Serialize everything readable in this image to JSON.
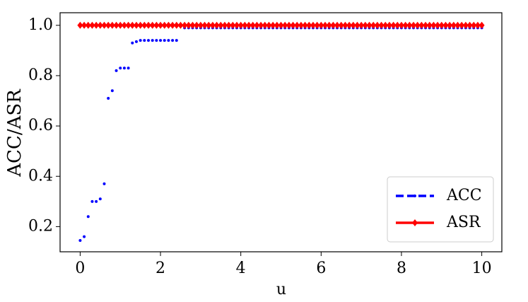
{
  "chart_data": {
    "type": "line",
    "xlabel": "u",
    "ylabel": "ACC/ASR",
    "x": [
      0,
      0.1,
      0.2,
      0.3,
      0.4,
      0.5,
      0.6,
      0.7,
      0.8,
      0.9,
      1,
      1.1,
      1.2,
      1.3,
      1.4,
      1.5,
      1.6,
      1.7,
      1.8,
      1.9,
      2,
      2.1,
      2.2,
      2.3,
      2.4,
      2.5,
      2.6,
      2.7,
      2.8,
      2.9,
      3,
      3.1,
      3.2,
      3.3,
      3.4,
      3.5,
      3.6,
      3.7,
      3.8,
      3.9,
      4,
      4.1,
      4.2,
      4.3,
      4.4,
      4.5,
      4.6,
      4.7,
      4.8,
      4.9,
      5,
      5.1,
      5.2,
      5.3,
      5.4,
      5.5,
      5.6,
      5.7,
      5.8,
      5.9,
      6,
      6.1,
      6.2,
      6.3,
      6.4,
      6.5,
      6.6,
      6.7,
      6.8,
      6.9,
      7,
      7.1,
      7.2,
      7.3,
      7.4,
      7.5,
      7.6,
      7.7,
      7.8,
      7.9,
      8,
      8.1,
      8.2,
      8.3,
      8.4,
      8.5,
      8.6,
      8.7,
      8.8,
      8.9,
      9,
      9.1,
      9.2,
      9.3,
      9.4,
      9.5,
      9.6,
      9.7,
      9.8,
      9.9,
      10
    ],
    "series": [
      {
        "name": "ACC",
        "color": "#0000ff",
        "dashed": true,
        "marker": "dot",
        "values": [
          0.145,
          0.16,
          0.24,
          0.3,
          0.3,
          0.31,
          0.37,
          0.71,
          0.74,
          0.82,
          0.83,
          0.83,
          0.83,
          0.93,
          0.935,
          0.94,
          0.94,
          0.94,
          0.94,
          0.94,
          0.94,
          0.94,
          0.94,
          0.94,
          0.94,
          1.0,
          0.99,
          0.99,
          0.99,
          0.99,
          0.99,
          0.99,
          0.99,
          0.99,
          0.99,
          0.99,
          0.99,
          0.99,
          0.99,
          0.99,
          0.99,
          0.99,
          0.99,
          0.99,
          0.99,
          0.99,
          0.99,
          0.99,
          0.99,
          0.99,
          0.99,
          0.99,
          0.99,
          0.99,
          0.99,
          0.99,
          0.99,
          0.99,
          0.99,
          0.99,
          0.99,
          0.99,
          0.99,
          0.99,
          0.99,
          0.99,
          0.99,
          0.99,
          0.99,
          0.99,
          0.99,
          0.99,
          0.99,
          0.99,
          0.99,
          0.99,
          0.99,
          0.99,
          0.99,
          0.99,
          0.99,
          0.99,
          0.99,
          0.99,
          0.99,
          0.99,
          0.99,
          0.99,
          0.99,
          0.99,
          0.99,
          0.99,
          0.99,
          0.99,
          0.99,
          0.99,
          0.99,
          0.99,
          0.99,
          0.99,
          0.99
        ]
      },
      {
        "name": "ASR",
        "color": "#ff0000",
        "dashed": false,
        "marker": "diamond",
        "values": [
          1,
          1,
          1,
          1,
          1,
          1,
          1,
          1,
          1,
          1,
          1,
          1,
          1,
          1,
          1,
          1,
          1,
          1,
          1,
          1,
          1,
          1,
          1,
          1,
          1,
          1,
          1,
          1,
          1,
          1,
          1,
          1,
          1,
          1,
          1,
          1,
          1,
          1,
          1,
          1,
          1,
          1,
          1,
          1,
          1,
          1,
          1,
          1,
          1,
          1,
          1,
          1,
          1,
          1,
          1,
          1,
          1,
          1,
          1,
          1,
          1,
          1,
          1,
          1,
          1,
          1,
          1,
          1,
          1,
          1,
          1,
          1,
          1,
          1,
          1,
          1,
          1,
          1,
          1,
          1,
          1,
          1,
          1,
          1,
          1,
          1,
          1,
          1,
          1,
          1,
          1,
          1,
          1,
          1,
          1,
          1,
          1,
          1,
          1,
          1,
          1
        ]
      }
    ],
    "xlim": [
      -0.5,
      10.5
    ],
    "xticks": [
      0,
      2,
      4,
      6,
      8,
      10
    ],
    "ylim": [
      0.1,
      1.05
    ],
    "yticks": [
      0.2,
      0.4,
      0.6,
      0.8,
      {
        "value": 1,
        "label": "1.0"
      }
    ],
    "grid": false,
    "legend": "lower right"
  }
}
